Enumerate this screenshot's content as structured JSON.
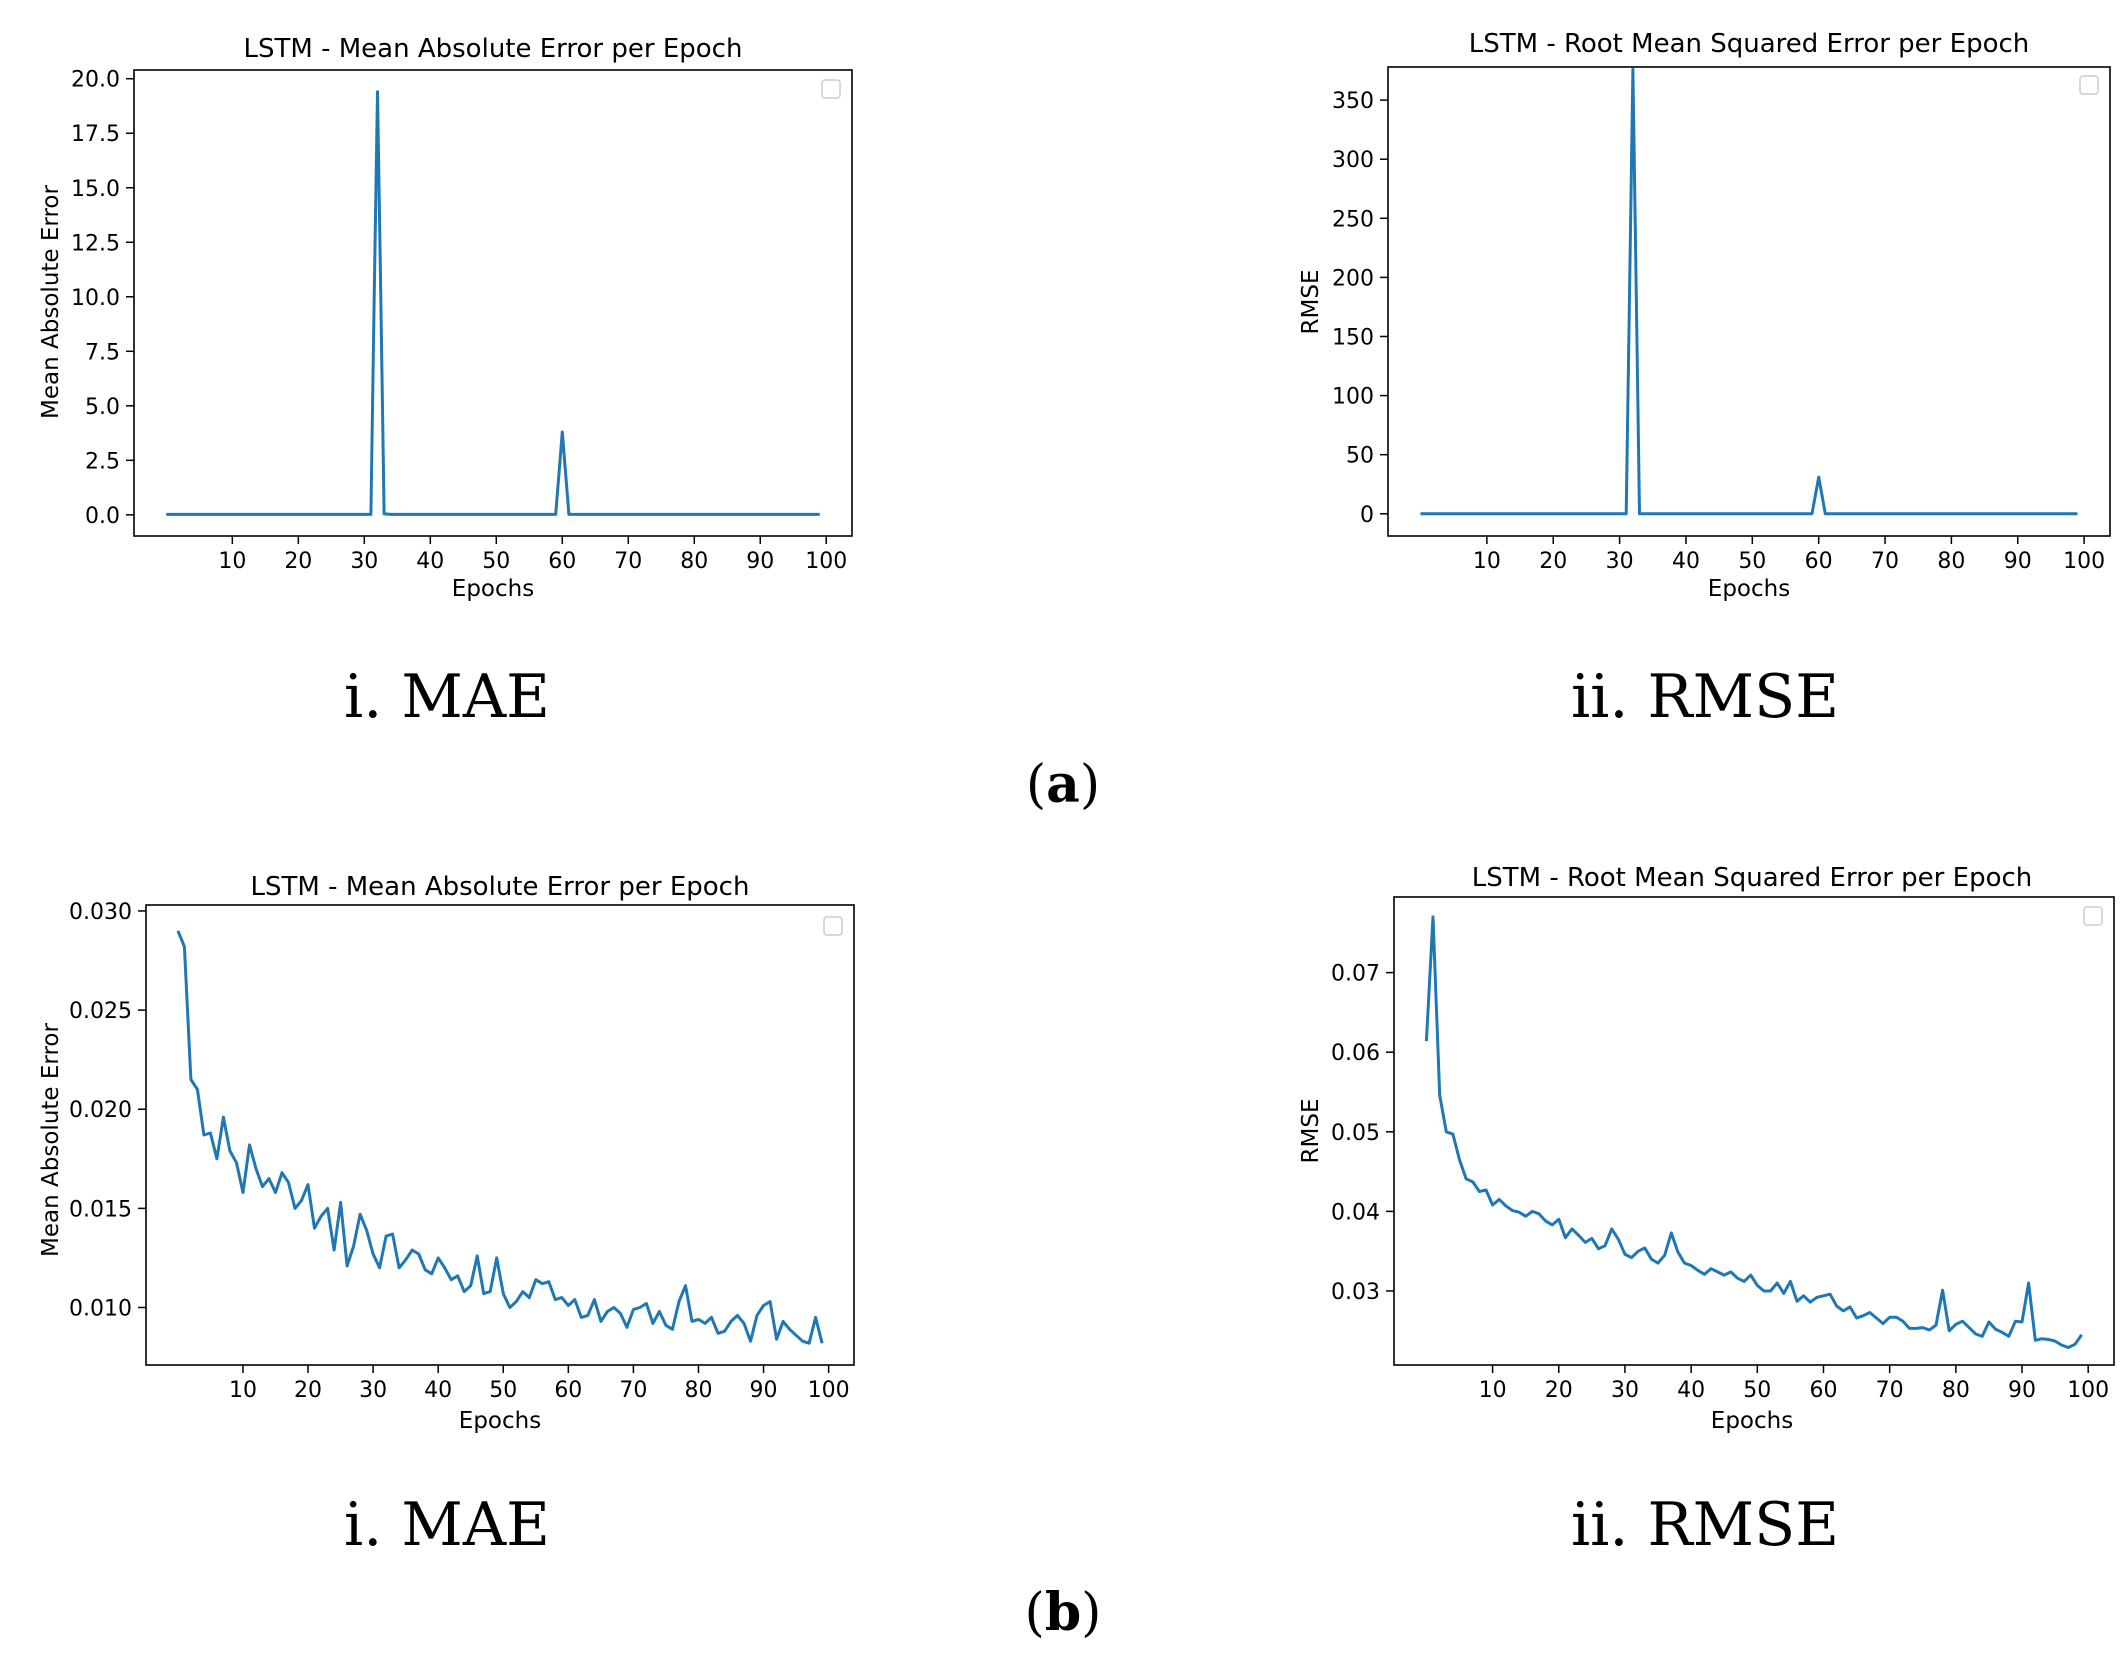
{
  "panels": [
    {
      "label_open": "(",
      "label_letter": "a",
      "label_close": ")"
    },
    {
      "label_open": "(",
      "label_letter": "b",
      "label_close": ")"
    }
  ],
  "captions": [
    "i. MAE",
    "ii. RMSE",
    "i. MAE",
    "ii. RMSE"
  ],
  "colors": {
    "line": "#1f77b4",
    "axes": "#000000",
    "legend_border": "#cccccc"
  },
  "chart_data": [
    {
      "type": "line",
      "title": "LSTM -  Mean Absolute Error per Epoch",
      "xlabel": "Epochs",
      "ylabel": "Mean Absolute Error",
      "xlim": [
        -4.9,
        103.9
      ],
      "ylim": [
        -0.97,
        20.4
      ],
      "xticks": [
        10,
        20,
        30,
        40,
        50,
        60,
        70,
        80,
        90,
        100
      ],
      "yticks": [
        0.0,
        2.5,
        5.0,
        7.5,
        10.0,
        12.5,
        15.0,
        17.5,
        20.0
      ],
      "ytick_labels": [
        "0.0",
        "2.5",
        "5.0",
        "7.5",
        "10.0",
        "12.5",
        "15.0",
        "17.5",
        "20.0"
      ],
      "legend": "top-right (empty)",
      "series": [
        {
          "name": "MAE",
          "points": [
            [
              0,
              0.02
            ],
            [
              31,
              0.02
            ],
            [
              31.5,
              10
            ],
            [
              32,
              19.4
            ],
            [
              32.5,
              10
            ],
            [
              33,
              0.05
            ],
            [
              34,
              0.02
            ],
            [
              59,
              0.02
            ],
            [
              60,
              3.8
            ],
            [
              61,
              0.02
            ],
            [
              99,
              0.02
            ]
          ]
        }
      ]
    },
    {
      "type": "line",
      "title": "LSTM - Root Mean Squared Error per Epoch",
      "xlabel": "Epochs",
      "ylabel": "RMSE",
      "xlim": [
        -4.9,
        103.9
      ],
      "ylim": [
        -18.8,
        378
      ],
      "xticks": [
        10,
        20,
        30,
        40,
        50,
        60,
        70,
        80,
        90,
        100
      ],
      "yticks": [
        0,
        50,
        100,
        150,
        200,
        250,
        300,
        350
      ],
      "ytick_labels": [
        "0",
        "50",
        "100",
        "150",
        "200",
        "250",
        "300",
        "350"
      ],
      "legend": "top-right (empty)",
      "series": [
        {
          "name": "RMSE",
          "points": [
            [
              0,
              0.05
            ],
            [
              31,
              0.05
            ],
            [
              31.5,
              190
            ],
            [
              32,
              376
            ],
            [
              32.5,
              190
            ],
            [
              33,
              0.1
            ],
            [
              34,
              0.05
            ],
            [
              59,
              0.05
            ],
            [
              60,
              31
            ],
            [
              61,
              0.05
            ],
            [
              99,
              0.05
            ]
          ]
        }
      ]
    },
    {
      "type": "line",
      "title": "LSTM -  Mean Absolute Error per Epoch",
      "xlabel": "Epochs",
      "ylabel": "Mean Absolute Error",
      "xlim": [
        -4.9,
        103.9
      ],
      "ylim": [
        0.0071,
        0.0303
      ],
      "xticks": [
        10,
        20,
        30,
        40,
        50,
        60,
        70,
        80,
        90,
        100
      ],
      "yticks": [
        0.01,
        0.015,
        0.02,
        0.025,
        0.03
      ],
      "ytick_labels": [
        "0.010",
        "0.015",
        "0.020",
        "0.025",
        "0.030"
      ],
      "legend": "top-right (empty)",
      "series": [
        {
          "name": "MAE",
          "values": [
            0.029,
            0.0282,
            0.0215,
            0.021,
            0.0187,
            0.0188,
            0.0175,
            0.0196,
            0.0179,
            0.0173,
            0.0158,
            0.0182,
            0.017,
            0.0161,
            0.0165,
            0.0158,
            0.0168,
            0.0163,
            0.015,
            0.0154,
            0.0162,
            0.014,
            0.0146,
            0.015,
            0.0129,
            0.0153,
            0.0121,
            0.0131,
            0.0147,
            0.0139,
            0.0127,
            0.012,
            0.0136,
            0.0137,
            0.012,
            0.0124,
            0.0129,
            0.0127,
            0.0119,
            0.0117,
            0.0125,
            0.012,
            0.0114,
            0.0116,
            0.0108,
            0.0111,
            0.0126,
            0.0107,
            0.0108,
            0.0125,
            0.0107,
            0.01,
            0.0103,
            0.0108,
            0.0105,
            0.0114,
            0.0112,
            0.0113,
            0.0104,
            0.0105,
            0.0101,
            0.0104,
            0.0095,
            0.0096,
            0.0104,
            0.0093,
            0.0098,
            0.01,
            0.0097,
            0.009,
            0.0099,
            0.01,
            0.0102,
            0.0092,
            0.0098,
            0.0091,
            0.0089,
            0.0103,
            0.0111,
            0.0093,
            0.0094,
            0.0092,
            0.0095,
            0.0087,
            0.0088,
            0.0093,
            0.0096,
            0.0092,
            0.0083,
            0.0096,
            0.0101,
            0.0103,
            0.0084,
            0.0093,
            0.0089,
            0.0086,
            0.0083,
            0.0082,
            0.0095,
            0.0082
          ]
        }
      ]
    },
    {
      "type": "line",
      "title": "LSTM - Root Mean Squared Error per Epoch",
      "xlabel": "Epochs",
      "ylabel": "RMSE",
      "xlim": [
        -4.9,
        103.9
      ],
      "ylim": [
        0.0207,
        0.0795
      ],
      "xticks": [
        10,
        20,
        30,
        40,
        50,
        60,
        70,
        80,
        90,
        100
      ],
      "yticks": [
        0.03,
        0.04,
        0.05,
        0.06,
        0.07
      ],
      "ytick_labels": [
        "0.03",
        "0.04",
        "0.05",
        "0.06",
        "0.07"
      ],
      "legend": "top-right (empty)",
      "series": [
        {
          "name": "RMSE",
          "values": [
            0.0614,
            0.077,
            0.0546,
            0.05,
            0.0497,
            0.0465,
            0.0441,
            0.0437,
            0.0425,
            0.0427,
            0.0408,
            0.0415,
            0.0407,
            0.0401,
            0.0399,
            0.0394,
            0.04,
            0.0397,
            0.0388,
            0.0383,
            0.039,
            0.0367,
            0.0378,
            0.037,
            0.0361,
            0.0366,
            0.0353,
            0.0357,
            0.0378,
            0.0365,
            0.0346,
            0.0342,
            0.035,
            0.0354,
            0.034,
            0.0335,
            0.0345,
            0.0373,
            0.0349,
            0.0335,
            0.0332,
            0.0326,
            0.0321,
            0.0328,
            0.0324,
            0.032,
            0.0324,
            0.0316,
            0.0312,
            0.032,
            0.0307,
            0.03,
            0.03,
            0.031,
            0.0297,
            0.0312,
            0.0287,
            0.0294,
            0.0286,
            0.0292,
            0.0294,
            0.0296,
            0.0281,
            0.0275,
            0.028,
            0.0266,
            0.0269,
            0.0273,
            0.0266,
            0.0259,
            0.0267,
            0.0267,
            0.0262,
            0.0253,
            0.0253,
            0.0254,
            0.0251,
            0.0257,
            0.0301,
            0.025,
            0.0258,
            0.0262,
            0.0254,
            0.0246,
            0.0243,
            0.0261,
            0.0252,
            0.0248,
            0.0243,
            0.0262,
            0.0261,
            0.031,
            0.0238,
            0.024,
            0.0239,
            0.0237,
            0.0232,
            0.0229,
            0.0233,
            0.0245
          ]
        }
      ]
    }
  ]
}
